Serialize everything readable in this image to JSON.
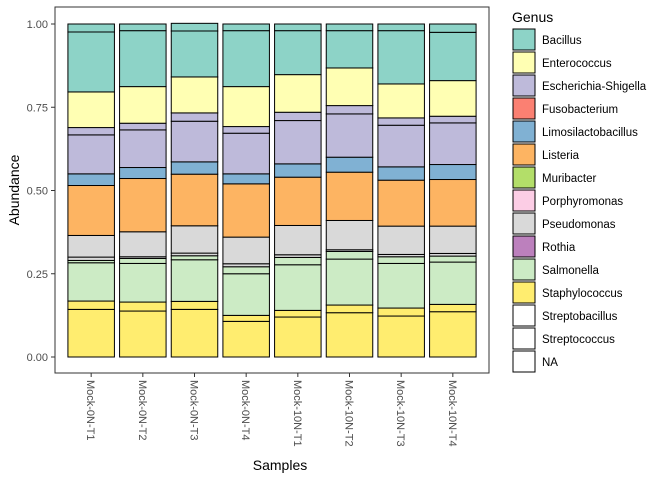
{
  "chart_data": {
    "type": "bar",
    "stacked": true,
    "title": "",
    "xlabel": "Samples",
    "ylabel": "Abundance",
    "ylim": [
      0,
      1
    ],
    "yticks": [
      0,
      0.25,
      0.5,
      0.75,
      1
    ],
    "ytick_labels": [
      "0.00",
      "0.25",
      "0.50",
      "0.75",
      "1.00"
    ],
    "grid": false,
    "legend_title": "Genus",
    "legend_position": "right",
    "categories": [
      "Mock-0N-T1",
      "Mock-0N-T2",
      "Mock-0N-T3",
      "Mock-0N-T4",
      "Mock-10N-T1",
      "Mock-10N-T2",
      "Mock-10N-T3",
      "Mock-10N-T4"
    ],
    "series": [
      {
        "name": "Staphylococcus",
        "color": "#FFED6F",
        "values": [
          0.143,
          0.138,
          0.143,
          0.107,
          0.12,
          0.133,
          0.123,
          0.136
        ]
      },
      {
        "name": "Staphylococcus",
        "color": "#FFED6F",
        "values": [
          0.025,
          0.027,
          0.024,
          0.018,
          0.02,
          0.023,
          0.024,
          0.022
        ]
      },
      {
        "name": "Salmonella",
        "color": "#CCEBC5",
        "values": [
          0.115,
          0.116,
          0.125,
          0.125,
          0.137,
          0.138,
          0.134,
          0.127
        ]
      },
      {
        "name": "Salmonella",
        "color": "#CCEBC5",
        "values": [
          0.007,
          0.015,
          0.012,
          0.021,
          0.022,
          0.023,
          0.02,
          0.018
        ]
      },
      {
        "name": "Pseudomonas",
        "color": "#D9D9D9",
        "values": [
          0.01,
          0.005,
          0.008,
          0.009,
          0.008,
          0.005,
          0.007,
          0.008
        ]
      },
      {
        "name": "Pseudomonas",
        "color": "#D9D9D9",
        "values": [
          0.065,
          0.075,
          0.082,
          0.08,
          0.088,
          0.088,
          0.085,
          0.082
        ]
      },
      {
        "name": "Listeria",
        "color": "#FDB462",
        "values": [
          0.15,
          0.16,
          0.155,
          0.16,
          0.145,
          0.145,
          0.138,
          0.14
        ]
      },
      {
        "name": "Limosilactobacillus",
        "color": "#80B1D3",
        "values": [
          0.035,
          0.033,
          0.037,
          0.03,
          0.04,
          0.045,
          0.04,
          0.045
        ]
      },
      {
        "name": "Escherichia-Shigella",
        "color": "#BEBADA",
        "values": [
          0.117,
          0.113,
          0.122,
          0.122,
          0.13,
          0.13,
          0.125,
          0.125
        ]
      },
      {
        "name": "Escherichia-Shigella",
        "color": "#BEBADA",
        "values": [
          0.022,
          0.02,
          0.025,
          0.02,
          0.025,
          0.025,
          0.022,
          0.02
        ]
      },
      {
        "name": "Enterococcus",
        "color": "#FFFFB3",
        "values": [
          0.107,
          0.11,
          0.108,
          0.12,
          0.113,
          0.113,
          0.102,
          0.107
        ]
      },
      {
        "name": "Bacillus",
        "color": "#8DD3C7",
        "values": [
          0.18,
          0.168,
          0.138,
          0.168,
          0.132,
          0.112,
          0.16,
          0.145
        ]
      },
      {
        "name": "Bacillus",
        "color": "#8DD3C7",
        "values": [
          0.024,
          0.02,
          0.023,
          0.02,
          0.02,
          0.02,
          0.02,
          0.025
        ]
      }
    ],
    "legend": [
      {
        "name": "Bacillus",
        "color": "#8DD3C7"
      },
      {
        "name": "Enterococcus",
        "color": "#FFFFB3"
      },
      {
        "name": "Escherichia-Shigella",
        "color": "#BEBADA"
      },
      {
        "name": "Fusobacterium",
        "color": "#FB8072"
      },
      {
        "name": "Limosilactobacillus",
        "color": "#80B1D3"
      },
      {
        "name": "Listeria",
        "color": "#FDB462"
      },
      {
        "name": "Muribacter",
        "color": "#B3DE69"
      },
      {
        "name": "Porphyromonas",
        "color": "#FCCDE5"
      },
      {
        "name": "Pseudomonas",
        "color": "#D9D9D9"
      },
      {
        "name": "Rothia",
        "color": "#BC80BD"
      },
      {
        "name": "Salmonella",
        "color": "#CCEBC5"
      },
      {
        "name": "Staphylococcus",
        "color": "#FFED6F"
      },
      {
        "name": "Streptobacillus",
        "color": "#FFFFFF"
      },
      {
        "name": "Streptococcus",
        "color": "#FFFFFF"
      },
      {
        "name": "NA",
        "color": "#FFFFFF"
      }
    ]
  }
}
